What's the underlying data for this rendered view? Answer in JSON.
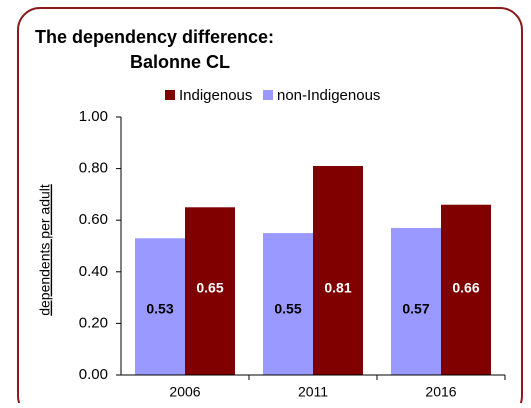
{
  "chart_data": {
    "type": "bar",
    "title": "The dependency difference:",
    "subtitle": "Balonne CL",
    "y_label": "dependents per adult",
    "categories": [
      "2006",
      "2011",
      "2016"
    ],
    "series": [
      {
        "name": "Indigenous",
        "color": "#800000",
        "values": [
          0.65,
          0.81,
          0.66
        ]
      },
      {
        "name": "non-Indigenous",
        "color": "#9999ff",
        "values": [
          0.53,
          0.55,
          0.57
        ]
      }
    ],
    "ylim": [
      0,
      1
    ],
    "yticks": [
      {
        "value": 0,
        "label": "0.00"
      },
      {
        "value": 0.2,
        "label": "0.20"
      },
      {
        "value": 0.4,
        "label": "0.40"
      },
      {
        "value": 0.6,
        "label": "0.60"
      },
      {
        "value": 0.8,
        "label": "0.80"
      },
      {
        "value": 1,
        "label": "1.00"
      }
    ],
    "legend": "top"
  }
}
